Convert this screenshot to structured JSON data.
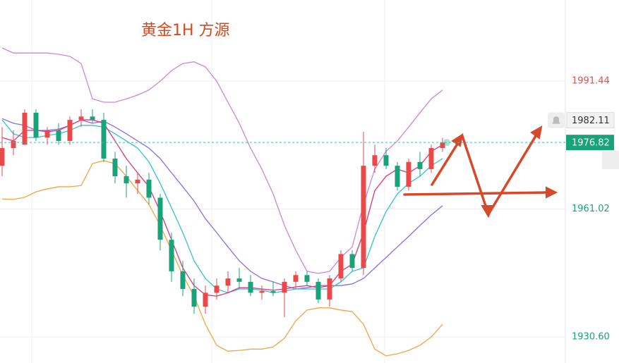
{
  "chart_data": {
    "type": "candlestick",
    "title": "黄金1H 方源",
    "ylim": [
      1924.4,
      2010.7
    ],
    "yticks": [
      1991.44,
      1961.02,
      {
        "value": 1930.6,
        "label": "1930.60"
      }
    ],
    "grid": true,
    "up_color": "#e84a4a",
    "down_color": "#1aa37a",
    "candles": {
      "open": [
        1971.3,
        1975.5,
        1976.3,
        1983.9,
        1978.0,
        1979.7,
        1977.2,
        1982.2,
        1983.0,
        1982.2,
        1973.0,
        1968.8,
        1967.1,
        1968.0,
        1963.7,
        1953.7,
        1946.2,
        1942.0,
        1937.8,
        1941.1,
        1942.8,
        1944.5,
        1943.7,
        1941.1,
        1941.5,
        1941.1,
        1943.7,
        1945.3,
        1943.7,
        1939.5,
        1944.5,
        1950.3,
        1947.0,
        1971.3,
        1973.8,
        1971.3,
        1966.3,
        1972.2,
        1970.5,
        1975.5
      ],
      "high": [
        1980.5,
        1979.7,
        1984.7,
        1984.7,
        1980.5,
        1981.4,
        1983.0,
        1984.7,
        1984.7,
        1983.9,
        1974.6,
        1971.3,
        1969.6,
        1969.6,
        1964.6,
        1955.4,
        1948.7,
        1944.5,
        1942.8,
        1944.5,
        1946.2,
        1947.0,
        1945.3,
        1942.8,
        1943.7,
        1944.5,
        1946.2,
        1946.2,
        1944.5,
        1945.3,
        1951.2,
        1951.2,
        1979.4,
        1976.3,
        1975.5,
        1972.2,
        1973.0,
        1974.6,
        1976.3,
        1977.9
      ],
      "low": [
        1968.8,
        1973.8,
        1976.3,
        1977.2,
        1976.3,
        1976.3,
        1976.3,
        1980.5,
        1981.4,
        1972.2,
        1967.1,
        1963.7,
        1964.6,
        1962.1,
        1951.2,
        1943.7,
        1940.3,
        1936.1,
        1936.1,
        1939.5,
        1941.1,
        1942.0,
        1940.3,
        1939.5,
        1940.3,
        1935.3,
        1942.0,
        1942.8,
        1938.6,
        1937.8,
        1943.7,
        1946.2,
        1945.3,
        1969.6,
        1970.5,
        1965.4,
        1965.4,
        1968.8,
        1969.6,
        1974.6
      ],
      "close": [
        1975.5,
        1977.2,
        1983.9,
        1978.0,
        1979.7,
        1977.2,
        1982.2,
        1983.0,
        1982.2,
        1973.0,
        1968.8,
        1967.1,
        1968.0,
        1963.7,
        1953.7,
        1946.2,
        1942.0,
        1937.8,
        1941.1,
        1942.8,
        1944.5,
        1943.7,
        1941.1,
        1941.5,
        1941.1,
        1943.7,
        1945.3,
        1943.7,
        1939.5,
        1944.5,
        1950.3,
        1947.0,
        1971.3,
        1973.8,
        1971.3,
        1966.3,
        1972.2,
        1970.5,
        1975.5,
        1976.8
      ]
    },
    "series": [
      {
        "color": "#d184d8",
        "values": [
          1999.3,
          1998.1,
          1998.1,
          1998.1,
          1998.1,
          1997.8,
          1997.3,
          1995.6,
          1987.2,
          1986.4,
          1986.4,
          1987.2,
          1988.1,
          1989.3,
          1991.4,
          1993.9,
          1995.6,
          1996.0,
          1994.8,
          1991.4,
          1986.4,
          1981.4,
          1975.5,
          1970.5,
          1964.6,
          1957.1,
          1951.2,
          1946.2,
          1945.7,
          1946.2,
          1949.5,
          1952.0,
          1962.1,
          1970.5,
          1974.7,
          1977.2,
          1980.5,
          1983.9,
          1987.2,
          1989.3
        ]
      },
      {
        "color": "#f2a446",
        "values": [
          1963.4,
          1963.3,
          1963.8,
          1965.1,
          1965.8,
          1966.3,
          1966.3,
          1966.6,
          1971.8,
          1972.5,
          1971.8,
          1968.8,
          1965.4,
          1962.1,
          1957.1,
          1951.2,
          1945.3,
          1940.3,
          1933.6,
          1928.6,
          1927.2,
          1927.4,
          1927.7,
          1927.7,
          1928.2,
          1930.3,
          1934.4,
          1937.0,
          1937.5,
          1937.5,
          1937.0,
          1936.6,
          1933.6,
          1927.7,
          1926.1,
          1926.6,
          1927.4,
          1928.6,
          1930.6,
          1933.6
        ]
      },
      {
        "color": "#8d6ee0",
        "values": [
          1982.5,
          1981.4,
          1980.9,
          1979.7,
          1979.7,
          1980.0,
          1980.9,
          1982.2,
          1981.4,
          1981.9,
          1980.5,
          1978.9,
          1977.2,
          1975.5,
          1973.0,
          1969.6,
          1966.3,
          1962.9,
          1958.7,
          1955.4,
          1952.0,
          1948.7,
          1946.2,
          1944.5,
          1943.7,
          1942.8,
          1942.0,
          1942.3,
          1942.8,
          1942.8,
          1942.8,
          1943.2,
          1944.5,
          1947.0,
          1949.5,
          1952.0,
          1954.5,
          1957.1,
          1959.6,
          1961.8
        ]
      },
      {
        "color": "#33c2d2",
        "values": [
          1982.2,
          1978.9,
          1978.0,
          1978.0,
          1978.5,
          1978.9,
          1979.7,
          1980.9,
          1980.9,
          1980.5,
          1978.9,
          1977.2,
          1975.5,
          1972.2,
          1967.1,
          1961.3,
          1955.4,
          1948.7,
          1944.5,
          1942.0,
          1941.1,
          1942.0,
          1942.0,
          1941.7,
          1941.1,
          1941.5,
          1942.0,
          1942.0,
          1942.0,
          1942.0,
          1943.7,
          1946.2,
          1947.0,
          1954.5,
          1960.4,
          1964.6,
          1967.1,
          1968.8,
          1971.3,
          1973.0
        ]
      },
      {
        "color": "#e2357a",
        "values": [
          1978.0,
          1977.2,
          1979.7,
          1979.7,
          1979.4,
          1979.7,
          1980.9,
          1982.2,
          1982.2,
          1981.4,
          1977.2,
          1973.0,
          1969.6,
          1966.3,
          1960.4,
          1953.7,
          1947.0,
          1942.8,
          1940.6,
          1940.3,
          1941.1,
          1942.3,
          1942.3,
          1942.0,
          1941.7,
          1942.0,
          1942.5,
          1942.8,
          1942.3,
          1942.8,
          1946.2,
          1947.9,
          1955.4,
          1965.4,
          1968.8,
          1970.5,
          1969.6,
          1971.3,
          1974.7,
          1976.3
        ]
      }
    ],
    "price_marker": 1982.11,
    "last_price": 1976.82
  }
}
